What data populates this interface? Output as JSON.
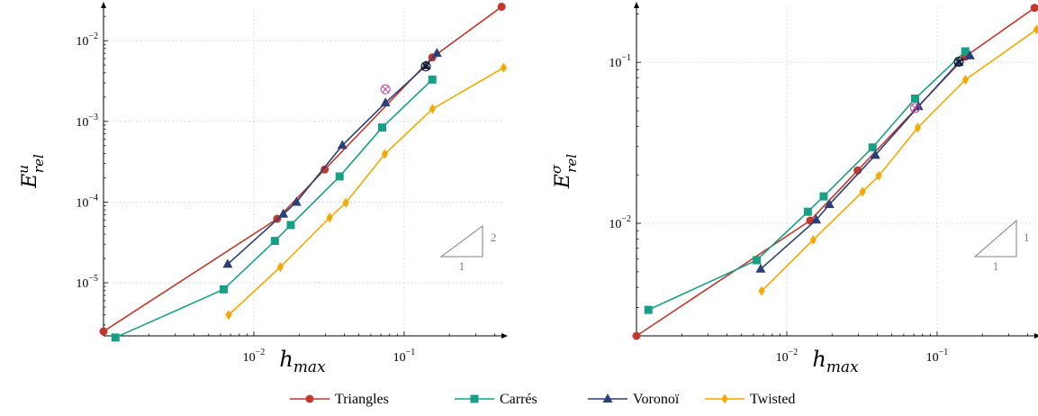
{
  "chart_data": [
    {
      "type": "line",
      "xscale": "log",
      "yscale": "log",
      "xlim": [
        0.001,
        0.45
      ],
      "ylim": [
        2.2e-06,
        0.026
      ],
      "x_ticks": [
        {
          "value": 0.01,
          "base": "10",
          "exp": "−2"
        },
        {
          "value": 0.1,
          "base": "10",
          "exp": "−1"
        }
      ],
      "y_ticks": [
        {
          "value": 1e-05,
          "base": "10",
          "exp": "−5"
        },
        {
          "value": 0.0001,
          "base": "10",
          "exp": "−4"
        },
        {
          "value": 0.001,
          "base": "10",
          "exp": "−3"
        },
        {
          "value": 0.01,
          "base": "10",
          "exp": "−2"
        }
      ],
      "xlabel": {
        "main": "h",
        "sub": "max"
      },
      "ylabel": {
        "main": "E",
        "sup": "u",
        "sub": "rel"
      },
      "slope_triangle": {
        "rise": "2",
        "run": "1"
      },
      "series": [
        {
          "name": "Triangles",
          "color": "#c0392b",
          "marker": "circle",
          "x": [
            0.001,
            0.0143,
            0.0296,
            0.1539,
            0.445
          ],
          "y": [
            2.5e-06,
            6.2e-05,
            0.000253,
            0.0062,
            0.0263
          ]
        },
        {
          "name": "Carrés",
          "color": "#17a085",
          "marker": "square",
          "x": [
            0.0012,
            0.0063,
            0.0138,
            0.0176,
            0.0372,
            0.0714,
            0.1539
          ],
          "y": [
            2.1e-06,
            8.3e-06,
            3.3e-05,
            5.2e-05,
            0.000208,
            0.00084,
            0.0033
          ]
        },
        {
          "name": "Voronoï",
          "color": "#2b3f78",
          "marker": "triangle",
          "x": [
            0.0067,
            0.0157,
            0.0192,
            0.0388,
            0.0751,
            0.1394,
            0.1652
          ],
          "y": [
            1.7e-05,
            7.1e-05,
            0.0001,
            0.000505,
            0.0017,
            0.0049,
            0.007
          ]
        },
        {
          "name": "Twisted",
          "color": "#f5a800",
          "marker": "diamond",
          "x": [
            0.0068,
            0.015,
            0.0319,
            0.0409,
            0.0743,
            0.1545,
            0.4588
          ],
          "y": [
            4e-06,
            1.57e-05,
            6.4e-05,
            9.8e-05,
            0.000393,
            0.00143,
            0.00463
          ]
        }
      ],
      "annotations": [
        {
          "marker": "circled-cross",
          "color": "#c040a0",
          "x": 0.0751,
          "y": 0.0025
        },
        {
          "marker": "circled-cross",
          "color": "#000000",
          "x": 0.1394,
          "y": 0.0048
        }
      ]
    },
    {
      "type": "line",
      "xscale": "log",
      "yscale": "log",
      "xlim": [
        0.001,
        0.45
      ],
      "ylim": [
        0.002,
        0.22
      ],
      "x_ticks": [
        {
          "value": 0.01,
          "base": "10",
          "exp": "−2"
        },
        {
          "value": 0.1,
          "base": "10",
          "exp": "−1"
        }
      ],
      "y_ticks": [
        {
          "value": 0.01,
          "base": "10",
          "exp": "−2"
        },
        {
          "value": 0.1,
          "base": "10",
          "exp": "−1"
        }
      ],
      "xlabel": {
        "main": "h",
        "sub": "max"
      },
      "ylabel": {
        "main": "E",
        "sup": "σ",
        "sub": "rel"
      },
      "slope_triangle": {
        "rise": "1",
        "run": "1"
      },
      "series": [
        {
          "name": "Triangles",
          "color": "#c0392b",
          "marker": "circle",
          "x": [
            0.001,
            0.0143,
            0.0296,
            0.1539,
            0.445
          ],
          "y": [
            0.002,
            0.0104,
            0.0213,
            0.1085,
            0.218
          ]
        },
        {
          "name": "Carrés",
          "color": "#17a085",
          "marker": "square",
          "x": [
            0.0012,
            0.0063,
            0.0138,
            0.0176,
            0.0372,
            0.0714,
            0.1539
          ],
          "y": [
            0.0029,
            0.0059,
            0.0118,
            0.0147,
            0.0296,
            0.0595,
            0.117
          ]
        },
        {
          "name": "Voronoï",
          "color": "#2b3f78",
          "marker": "triangle",
          "x": [
            0.0067,
            0.0157,
            0.0192,
            0.0388,
            0.0751,
            0.1394,
            0.1652
          ],
          "y": [
            0.0052,
            0.0105,
            0.0131,
            0.0265,
            0.0532,
            0.1,
            0.11
          ]
        },
        {
          "name": "Twisted",
          "color": "#f5a800",
          "marker": "diamond",
          "x": [
            0.0068,
            0.015,
            0.0319,
            0.0409,
            0.0743,
            0.1545,
            0.4588
          ],
          "y": [
            0.0038,
            0.0079,
            0.0157,
            0.0197,
            0.0393,
            0.078,
            0.16
          ]
        }
      ],
      "annotations": [
        {
          "marker": "circled-cross",
          "color": "#c040a0",
          "x": 0.0714,
          "y": 0.052
        },
        {
          "marker": "circled-cross",
          "color": "#000000",
          "x": 0.1394,
          "y": 0.101
        }
      ]
    }
  ],
  "legend": {
    "placement": "bottom",
    "items": [
      {
        "label": "Triangles",
        "color": "#c0392b",
        "marker": "circle"
      },
      {
        "label": "Carrés",
        "color": "#17a085",
        "marker": "square"
      },
      {
        "label": "Voronoï",
        "color": "#2b3f78",
        "marker": "triangle"
      },
      {
        "label": "Twisted",
        "color": "#f5a800",
        "marker": "diamond"
      }
    ]
  }
}
